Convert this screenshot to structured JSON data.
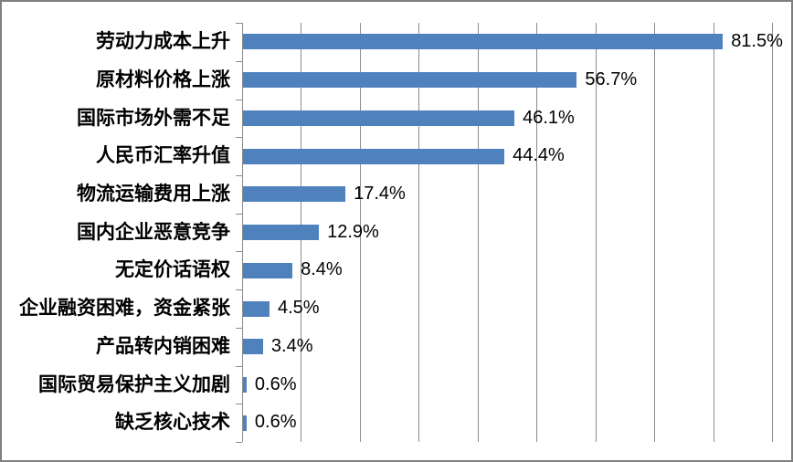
{
  "chart_data": {
    "type": "bar",
    "orientation": "horizontal",
    "title": "",
    "xlabel": "",
    "ylabel": "",
    "categories": [
      "劳动力成本上升",
      "原材料价格上涨",
      "国际市场外需不足",
      "人民币汇率升值",
      "物流运输费用上涨",
      "国内企业恶意竞争",
      "无定价话语权",
      "企业融资困难，资金紧张",
      "产品转内销困难",
      "国际贸易保护主义加剧",
      "缺乏核心技术"
    ],
    "values": [
      81.5,
      56.7,
      46.1,
      44.4,
      17.4,
      12.9,
      8.4,
      4.5,
      3.4,
      0.6,
      0.6
    ],
    "value_labels": [
      "81.5%",
      "56.7%",
      "46.1%",
      "44.4%",
      "17.4%",
      "12.9%",
      "8.4%",
      "4.5%",
      "3.4%",
      "0.6%",
      "0.6%"
    ],
    "xlim": [
      0,
      90
    ],
    "gridline_interval": 10,
    "grid": true,
    "legend": false,
    "axis_tick_labels_visible": false,
    "bar_color": "#4f81bd",
    "gridline_color": "#8c8c8c",
    "axis_color": "#8c8c8c",
    "frame_border_color": "#7f7f7f",
    "background_color": "#ffffff",
    "text_color": "#000000"
  }
}
